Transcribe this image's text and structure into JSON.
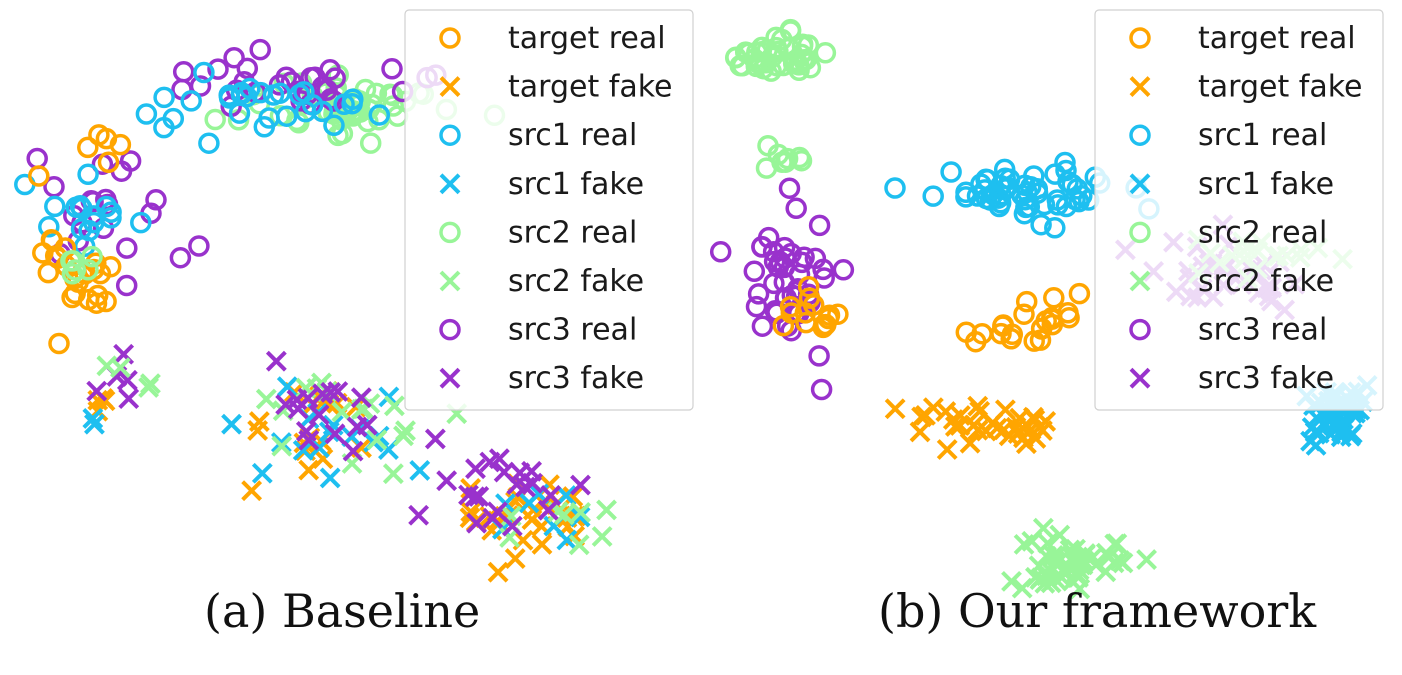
{
  "colors": {
    "target": "#FFA500",
    "src1": "#1EBFF0",
    "src2": "#98F598",
    "src3": "#9932CC"
  },
  "chart_data": [
    {
      "type": "scatter",
      "caption": "(a) Baseline",
      "legend": {
        "placement": "top-right",
        "entries": [
          {
            "label": "target real",
            "group": "target",
            "marker": "circle"
          },
          {
            "label": "target fake",
            "group": "target",
            "marker": "cross"
          },
          {
            "label": "src1 real",
            "group": "src1",
            "marker": "circle"
          },
          {
            "label": "src1 fake",
            "group": "src1",
            "marker": "cross"
          },
          {
            "label": "src2 real",
            "group": "src2",
            "marker": "circle"
          },
          {
            "label": "src2 fake",
            "group": "src2",
            "marker": "cross"
          },
          {
            "label": "src3 real",
            "group": "src3",
            "marker": "circle"
          },
          {
            "label": "src3 fake",
            "group": "src3",
            "marker": "cross"
          }
        ]
      },
      "axes": "hidden",
      "grid": false,
      "clusters": [
        {
          "series": "src2 real",
          "center": [
            0.5,
            0.84
          ],
          "spread": [
            0.15,
            0.05
          ],
          "n": 55
        },
        {
          "series": "src3 real",
          "center": [
            0.4,
            0.88
          ],
          "spread": [
            0.18,
            0.05
          ],
          "n": 30
        },
        {
          "series": "src1 real",
          "center": [
            0.4,
            0.86
          ],
          "spread": [
            0.18,
            0.06
          ],
          "n": 30
        },
        {
          "series": "src3 real",
          "center": [
            0.14,
            0.65
          ],
          "spread": [
            0.1,
            0.11
          ],
          "n": 20
        },
        {
          "series": "src1 real",
          "center": [
            0.13,
            0.64
          ],
          "spread": [
            0.1,
            0.1
          ],
          "n": 16
        },
        {
          "series": "target real",
          "center": [
            0.09,
            0.56
          ],
          "spread": [
            0.06,
            0.08
          ],
          "n": 22
        },
        {
          "series": "target real",
          "center": [
            0.12,
            0.76
          ],
          "spread": [
            0.08,
            0.05
          ],
          "n": 6
        },
        {
          "series": "src2 real",
          "center": [
            0.1,
            0.55
          ],
          "spread": [
            0.04,
            0.04
          ],
          "n": 6
        },
        {
          "series": "target fake",
          "center": [
            0.45,
            0.3
          ],
          "spread": [
            0.1,
            0.08
          ],
          "n": 18
        },
        {
          "series": "target fake",
          "center": [
            0.76,
            0.14
          ],
          "spread": [
            0.1,
            0.06
          ],
          "n": 28
        },
        {
          "series": "src1 fake",
          "center": [
            0.48,
            0.28
          ],
          "spread": [
            0.13,
            0.08
          ],
          "n": 18
        },
        {
          "series": "src1 fake",
          "center": [
            0.78,
            0.15
          ],
          "spread": [
            0.1,
            0.08
          ],
          "n": 8
        },
        {
          "series": "src2 fake",
          "center": [
            0.48,
            0.3
          ],
          "spread": [
            0.13,
            0.08
          ],
          "n": 18
        },
        {
          "series": "src2 fake",
          "center": [
            0.8,
            0.13
          ],
          "spread": [
            0.09,
            0.06
          ],
          "n": 8
        },
        {
          "series": "src3 fake",
          "center": [
            0.45,
            0.32
          ],
          "spread": [
            0.1,
            0.08
          ],
          "n": 16
        },
        {
          "series": "src3 fake",
          "center": [
            0.7,
            0.18
          ],
          "spread": [
            0.13,
            0.08
          ],
          "n": 22
        },
        {
          "series": "target fake",
          "center": [
            0.14,
            0.35
          ],
          "spread": [
            0.03,
            0.03
          ],
          "n": 4
        },
        {
          "series": "src3 fake",
          "center": [
            0.15,
            0.38
          ],
          "spread": [
            0.03,
            0.04
          ],
          "n": 5
        },
        {
          "series": "src2 fake",
          "center": [
            0.17,
            0.37
          ],
          "spread": [
            0.04,
            0.04
          ],
          "n": 4
        },
        {
          "series": "src1 fake",
          "center": [
            0.13,
            0.3
          ],
          "spread": [
            0.01,
            0.01
          ],
          "n": 2
        }
      ]
    },
    {
      "type": "scatter",
      "caption": "(b) Our framework",
      "legend": {
        "placement": "top-right",
        "entries": [
          {
            "label": "target real",
            "group": "target",
            "marker": "circle"
          },
          {
            "label": "target fake",
            "group": "target",
            "marker": "cross"
          },
          {
            "label": "src1 real",
            "group": "src1",
            "marker": "circle"
          },
          {
            "label": "src1 fake",
            "group": "src1",
            "marker": "cross"
          },
          {
            "label": "src2 real",
            "group": "src2",
            "marker": "circle"
          },
          {
            "label": "src2 fake",
            "group": "src2",
            "marker": "cross"
          },
          {
            "label": "src3 real",
            "group": "src3",
            "marker": "circle"
          },
          {
            "label": "src3 fake",
            "group": "src3",
            "marker": "cross"
          }
        ]
      },
      "axes": "hidden",
      "grid": false,
      "clusters": [
        {
          "series": "src2 real",
          "center": [
            0.1,
            0.92
          ],
          "spread": [
            0.07,
            0.04
          ],
          "n": 40
        },
        {
          "series": "src2 real",
          "center": [
            0.1,
            0.75
          ],
          "spread": [
            0.03,
            0.02
          ],
          "n": 8
        },
        {
          "series": "src1 real",
          "center": [
            0.45,
            0.7
          ],
          "spread": [
            0.16,
            0.04
          ],
          "n": 55
        },
        {
          "series": "src3 real",
          "center": [
            0.12,
            0.55
          ],
          "spread": [
            0.06,
            0.12
          ],
          "n": 45
        },
        {
          "series": "target real",
          "center": [
            0.15,
            0.48
          ],
          "spread": [
            0.05,
            0.05
          ],
          "n": 15
        },
        {
          "series": "target real",
          "center": [
            0.46,
            0.47
          ],
          "spread": [
            0.09,
            0.04
          ],
          "n": 22
        },
        {
          "series": "target fake",
          "center": [
            0.4,
            0.3
          ],
          "spread": [
            0.12,
            0.04
          ],
          "n": 35
        },
        {
          "series": "src2 fake",
          "center": [
            0.53,
            0.07
          ],
          "spread": [
            0.07,
            0.05
          ],
          "n": 50
        },
        {
          "series": "src1 fake",
          "center": [
            0.92,
            0.32
          ],
          "spread": [
            0.05,
            0.05
          ],
          "n": 55
        },
        {
          "series": "src3 fake",
          "center": [
            0.75,
            0.55
          ],
          "spread": [
            0.16,
            0.06
          ],
          "n": 35
        },
        {
          "series": "src2 fake",
          "center": [
            0.79,
            0.58
          ],
          "spread": [
            0.12,
            0.04
          ],
          "n": 20
        }
      ]
    }
  ]
}
